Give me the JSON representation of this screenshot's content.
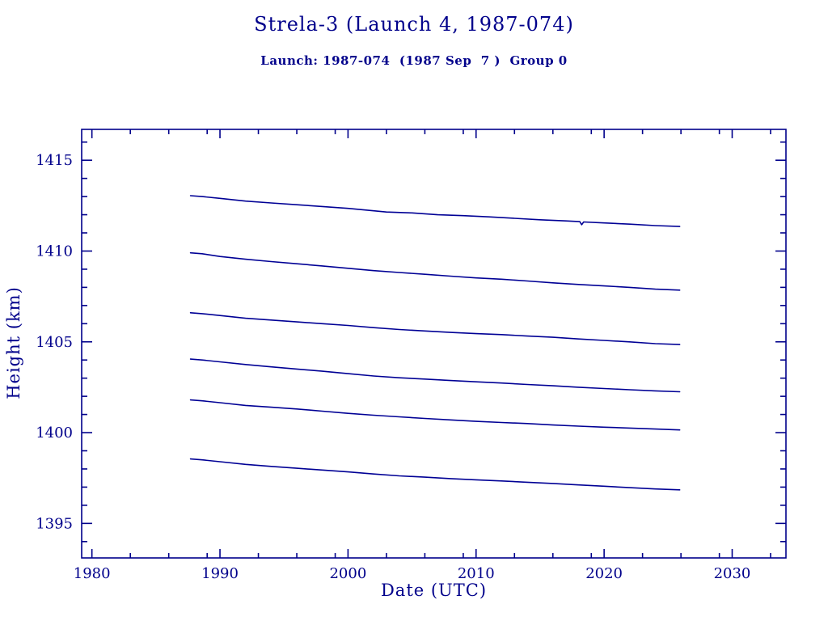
{
  "window": {
    "background": "#ffffff"
  },
  "chart_data": {
    "type": "line",
    "title": "Strela-3 (Launch 4, 1987-074)",
    "subtitle": "Launch: 1987-074  (1987 Sep  7 )  Group 0",
    "xlabel": "Date (UTC)",
    "ylabel": "Height (km)",
    "xlim": [
      1979.2,
      2034.2
    ],
    "ylim": [
      1393.1,
      1416.7
    ],
    "x_major_ticks": [
      1980,
      1990,
      2000,
      2010,
      2020,
      2030
    ],
    "x_minor_ticks": [
      1983,
      1986,
      1989,
      1993,
      1996,
      1999,
      2003,
      2006,
      2009,
      2013,
      2016,
      2019,
      2023,
      2026,
      2029,
      2033
    ],
    "y_major_ticks": [
      1395,
      1400,
      1405,
      1410,
      1415
    ],
    "y_minor_ticks": [
      1394,
      1396,
      1397,
      1398,
      1399,
      1401,
      1402,
      1403,
      1404,
      1406,
      1407,
      1408,
      1409,
      1411,
      1412,
      1413,
      1414,
      1416
    ],
    "grid": false,
    "legend": "none",
    "colors": {
      "text": "#00008b",
      "axis": "#00008b",
      "line": "#000095",
      "background": "#ffffff"
    },
    "series": [
      {
        "name": "series-1",
        "points": [
          [
            1987.7,
            1413.05
          ],
          [
            1988.6,
            1413.0
          ],
          [
            1990,
            1412.9
          ],
          [
            1992,
            1412.75
          ],
          [
            1994,
            1412.65
          ],
          [
            1996,
            1412.55
          ],
          [
            1998,
            1412.45
          ],
          [
            2000,
            1412.35
          ],
          [
            2001.5,
            1412.25
          ],
          [
            2003,
            1412.15
          ],
          [
            2005,
            1412.1
          ],
          [
            2007,
            1412.0
          ],
          [
            2009,
            1411.95
          ],
          [
            2011,
            1411.88
          ],
          [
            2013,
            1411.8
          ],
          [
            2015,
            1411.72
          ],
          [
            2017,
            1411.66
          ],
          [
            2018.1,
            1411.62
          ],
          [
            2018.25,
            1411.45
          ],
          [
            2018.4,
            1411.6
          ],
          [
            2020,
            1411.55
          ],
          [
            2022,
            1411.48
          ],
          [
            2024,
            1411.4
          ],
          [
            2025.9,
            1411.35
          ]
        ]
      },
      {
        "name": "series-2",
        "points": [
          [
            1987.7,
            1409.9
          ],
          [
            1988.6,
            1409.85
          ],
          [
            1990,
            1409.7
          ],
          [
            1992,
            1409.55
          ],
          [
            1994,
            1409.42
          ],
          [
            1996,
            1409.3
          ],
          [
            1998,
            1409.18
          ],
          [
            2000,
            1409.05
          ],
          [
            2002,
            1408.92
          ],
          [
            2004,
            1408.82
          ],
          [
            2006,
            1408.72
          ],
          [
            2008,
            1408.62
          ],
          [
            2010,
            1408.52
          ],
          [
            2012,
            1408.45
          ],
          [
            2014,
            1408.35
          ],
          [
            2016,
            1408.25
          ],
          [
            2018,
            1408.16
          ],
          [
            2020,
            1408.08
          ],
          [
            2022,
            1408.0
          ],
          [
            2024,
            1407.9
          ],
          [
            2025.9,
            1407.85
          ]
        ]
      },
      {
        "name": "series-3",
        "points": [
          [
            1987.7,
            1406.6
          ],
          [
            1988.6,
            1406.55
          ],
          [
            1990,
            1406.45
          ],
          [
            1992,
            1406.3
          ],
          [
            1994,
            1406.2
          ],
          [
            1996,
            1406.1
          ],
          [
            1998,
            1406.0
          ],
          [
            2000,
            1405.9
          ],
          [
            2002,
            1405.78
          ],
          [
            2004,
            1405.68
          ],
          [
            2006,
            1405.6
          ],
          [
            2008,
            1405.52
          ],
          [
            2010,
            1405.45
          ],
          [
            2012,
            1405.4
          ],
          [
            2014,
            1405.32
          ],
          [
            2016,
            1405.25
          ],
          [
            2018,
            1405.16
          ],
          [
            2020,
            1405.08
          ],
          [
            2022,
            1405.0
          ],
          [
            2024,
            1404.9
          ],
          [
            2025.9,
            1404.85
          ]
        ]
      },
      {
        "name": "series-4",
        "points": [
          [
            1987.7,
            1404.05
          ],
          [
            1988.6,
            1404.0
          ],
          [
            1990,
            1403.9
          ],
          [
            1992,
            1403.75
          ],
          [
            1994,
            1403.62
          ],
          [
            1996,
            1403.5
          ],
          [
            1998,
            1403.38
          ],
          [
            2000,
            1403.25
          ],
          [
            2002,
            1403.12
          ],
          [
            2004,
            1403.02
          ],
          [
            2006,
            1402.95
          ],
          [
            2008,
            1402.87
          ],
          [
            2010,
            1402.8
          ],
          [
            2012,
            1402.73
          ],
          [
            2014,
            1402.65
          ],
          [
            2016,
            1402.58
          ],
          [
            2018,
            1402.5
          ],
          [
            2020,
            1402.43
          ],
          [
            2022,
            1402.36
          ],
          [
            2024,
            1402.3
          ],
          [
            2025.9,
            1402.25
          ]
        ]
      },
      {
        "name": "series-5",
        "points": [
          [
            1987.7,
            1401.8
          ],
          [
            1988.6,
            1401.75
          ],
          [
            1990,
            1401.65
          ],
          [
            1992,
            1401.5
          ],
          [
            1994,
            1401.4
          ],
          [
            1996,
            1401.3
          ],
          [
            1998,
            1401.18
          ],
          [
            2000,
            1401.06
          ],
          [
            2002,
            1400.96
          ],
          [
            2004,
            1400.87
          ],
          [
            2006,
            1400.78
          ],
          [
            2008,
            1400.7
          ],
          [
            2010,
            1400.62
          ],
          [
            2012,
            1400.56
          ],
          [
            2014,
            1400.5
          ],
          [
            2016,
            1400.42
          ],
          [
            2018,
            1400.36
          ],
          [
            2020,
            1400.3
          ],
          [
            2022,
            1400.25
          ],
          [
            2024,
            1400.2
          ],
          [
            2025.9,
            1400.15
          ]
        ]
      },
      {
        "name": "series-6",
        "points": [
          [
            1987.7,
            1398.55
          ],
          [
            1988.6,
            1398.5
          ],
          [
            1990,
            1398.4
          ],
          [
            1992,
            1398.25
          ],
          [
            1994,
            1398.14
          ],
          [
            1996,
            1398.04
          ],
          [
            1998,
            1397.94
          ],
          [
            2000,
            1397.84
          ],
          [
            2002,
            1397.72
          ],
          [
            2004,
            1397.62
          ],
          [
            2006,
            1397.55
          ],
          [
            2008,
            1397.47
          ],
          [
            2010,
            1397.4
          ],
          [
            2012,
            1397.34
          ],
          [
            2014,
            1397.27
          ],
          [
            2016,
            1397.2
          ],
          [
            2018,
            1397.12
          ],
          [
            2020,
            1397.05
          ],
          [
            2022,
            1396.97
          ],
          [
            2024,
            1396.9
          ],
          [
            2025.9,
            1396.85
          ]
        ]
      }
    ]
  }
}
